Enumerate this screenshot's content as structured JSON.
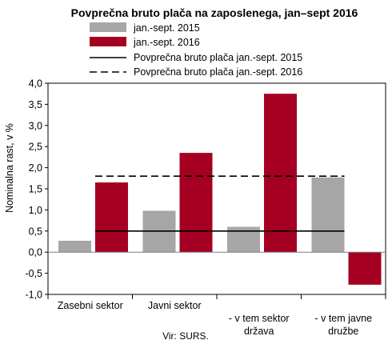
{
  "chart_data": {
    "type": "bar",
    "title": "Povprečna bruto plača na zaposlenega, jan–sept 2016",
    "ylabel": "Nominalna rast, v %",
    "ylim": [
      -1.0,
      4.0
    ],
    "yticks": [
      "-1,0",
      "-0,5",
      "0,0",
      "0,5",
      "1,0",
      "1,5",
      "2,0",
      "2,5",
      "3,0",
      "3,5",
      "4,0"
    ],
    "ytick_values": [
      -1.0,
      -0.5,
      0.0,
      0.5,
      1.0,
      1.5,
      2.0,
      2.5,
      3.0,
      3.5,
      4.0
    ],
    "categories": [
      [
        "Zasebni sektor"
      ],
      [
        "Javni sektor"
      ],
      [
        "- v tem sektor",
        "država"
      ],
      [
        "- v tem javne",
        "družbe"
      ]
    ],
    "series": [
      {
        "name": "jan.-sept. 2015",
        "color": "#a6a6a6",
        "values": [
          0.27,
          0.98,
          0.6,
          1.77
        ]
      },
      {
        "name": "jan.-sept. 2016",
        "color": "#a50021",
        "values": [
          1.65,
          2.35,
          3.75,
          -0.77
        ]
      }
    ],
    "reference_lines": [
      {
        "name": "Povprečna bruto plača jan.-sept. 2015",
        "value": 0.5,
        "style": "solid",
        "color": "#000000"
      },
      {
        "name": "Povprečna bruto plača jan.-sept. 2016",
        "value": 1.8,
        "style": "dashed",
        "color": "#000000"
      }
    ],
    "legend_position": "top",
    "grid": false,
    "source": "Vir: SURS."
  }
}
